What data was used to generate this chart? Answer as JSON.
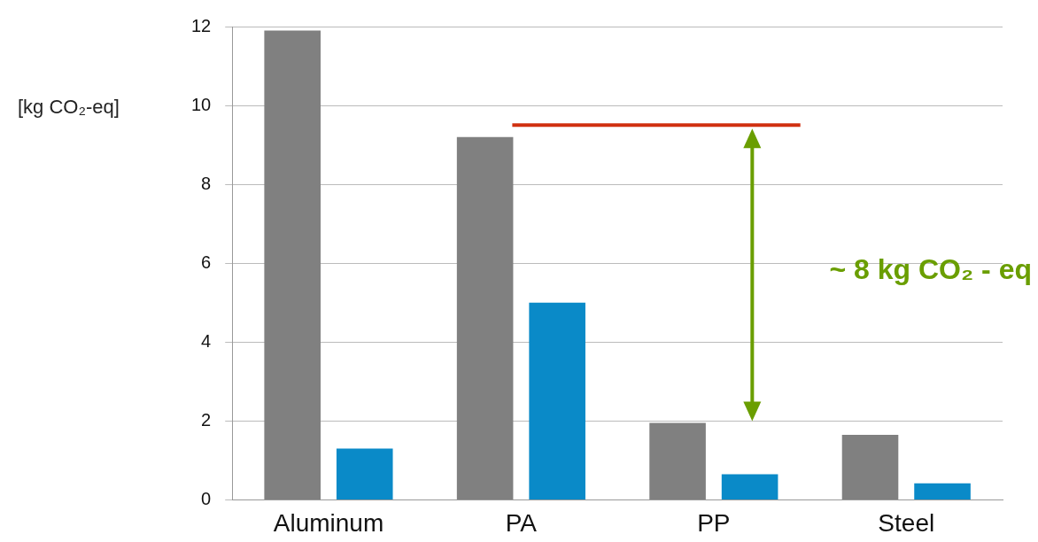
{
  "chart_data": {
    "type": "bar",
    "ylabel": "[kg CO₂-eq]",
    "categories": [
      "Aluminum",
      "PA",
      "PP",
      "Steel"
    ],
    "series": [
      {
        "color": "#808080",
        "values": [
          11.9,
          9.2,
          1.95,
          1.65
        ]
      },
      {
        "color": "#0a8ac8",
        "values": [
          1.3,
          5.0,
          0.65,
          0.42
        ]
      }
    ],
    "ylim": [
      0,
      12
    ],
    "yticks": [
      0,
      2,
      4,
      6,
      8,
      10,
      12
    ],
    "grid": "y",
    "ref_lines": [
      {
        "axis": "y",
        "value": 9.5,
        "color": "#d03010"
      }
    ],
    "annotations": [
      "~ 8 kg CO₂ - eq"
    ]
  }
}
